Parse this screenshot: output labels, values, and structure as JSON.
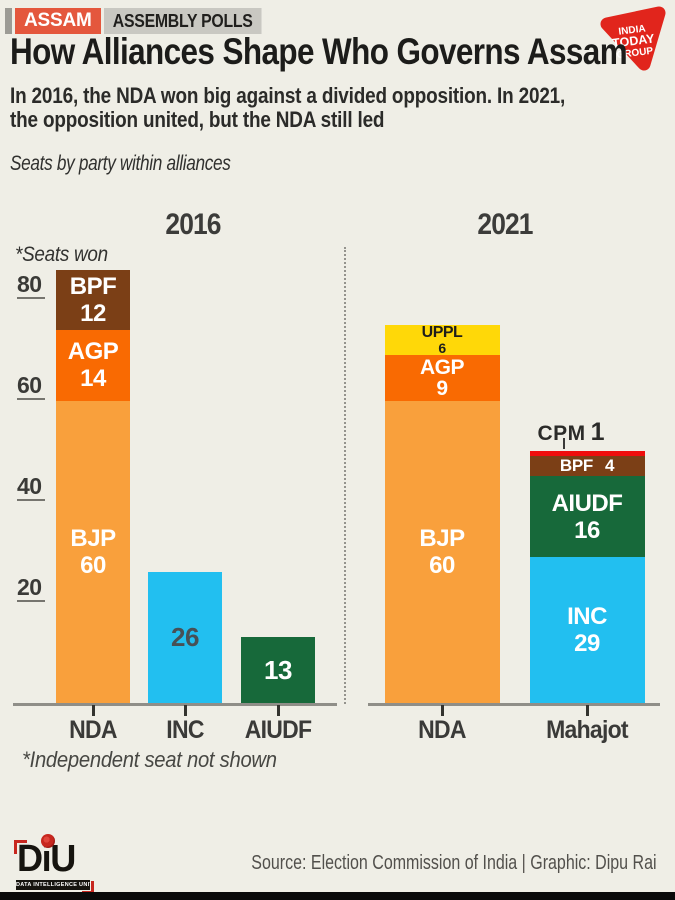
{
  "header": {
    "kicker_primary": "ASSAM",
    "kicker_secondary": "ASSEMBLY POLLS",
    "title": "How Alliances Shape Who Governs Assam",
    "subtitle_lines": [
      "In 2016, the NDA won big against a divided opposition. In 2021,",
      "the opposition united, but the NDA still led"
    ],
    "dek": "Seats by party within alliances",
    "brand": {
      "lines": [
        "INDIA",
        "TODAY",
        "GROUP"
      ]
    }
  },
  "chart_data": {
    "type": "bar",
    "stacked": true,
    "unit": "seats",
    "axis_note": "*Seats won",
    "footnote": "*Independent seat not shown",
    "y_ticks": [
      20,
      40,
      60,
      80
    ],
    "ylim": [
      0,
      90
    ],
    "grid": false,
    "legend": "labels inside segments",
    "segments_order": "bottom-to-top",
    "panels": [
      {
        "year": "2016",
        "groups": [
          {
            "label": "NDA",
            "total": 86,
            "segments": [
              {
                "party": "BJP",
                "seats": 60,
                "label_style": "name-seats"
              },
              {
                "party": "AGP",
                "seats": 14,
                "label_style": "name-seats"
              },
              {
                "party": "BPF",
                "seats": 12,
                "label_style": "name-seats"
              }
            ]
          },
          {
            "label": "INC",
            "total": 26,
            "segments": [
              {
                "party": "INC",
                "seats": 26,
                "label_style": "seats-only",
                "text_color": "#475056"
              }
            ]
          },
          {
            "label": "AIUDF",
            "total": 13,
            "segments": [
              {
                "party": "AIUDF",
                "seats": 13,
                "label_style": "seats-only"
              }
            ]
          }
        ]
      },
      {
        "year": "2021",
        "groups": [
          {
            "label": "NDA",
            "total": 75,
            "segments": [
              {
                "party": "BJP",
                "seats": 60,
                "label_style": "name-seats"
              },
              {
                "party": "AGP",
                "seats": 9,
                "label_style": "name-seats"
              },
              {
                "party": "UPPL",
                "seats": 6,
                "label_style": "name-seats-compact",
                "text_color": "#1F1E1C"
              }
            ]
          },
          {
            "label": "Mahajot",
            "total": 50,
            "segments": [
              {
                "party": "INC",
                "seats": 29,
                "label_style": "name-seats"
              },
              {
                "party": "AIUDF",
                "seats": 16,
                "label_style": "name-seats"
              },
              {
                "party": "BPF",
                "seats": 4,
                "label_style": "inline"
              },
              {
                "party": "CPM",
                "seats": 1,
                "label_style": "outside"
              }
            ]
          }
        ]
      }
    ],
    "party_colors": {
      "BJP": "#F9A03C",
      "AGP": "#F96A02",
      "BPF": "#7B3F16",
      "INC": "#22BFF0",
      "AIUDF": "#17693A",
      "UPPL": "#FFD808",
      "CPM": "#EF0D0C"
    }
  },
  "footer": {
    "logo": {
      "wordmark": "DiU",
      "tagline": "DATA INTELLIGENCE UNIT"
    },
    "credit": "Source: Election Commission of India | Graphic: Dipu Rai"
  },
  "colors": {
    "background": "#EFEEE6",
    "kicker_bg": "#E4573D",
    "kicker_gray_bg": "#C9C8C2",
    "brand_red": "#E1251C",
    "axis": "#8F8E88",
    "diu_red": "#C7271F",
    "bottom_bar": "#0A0A0A"
  }
}
